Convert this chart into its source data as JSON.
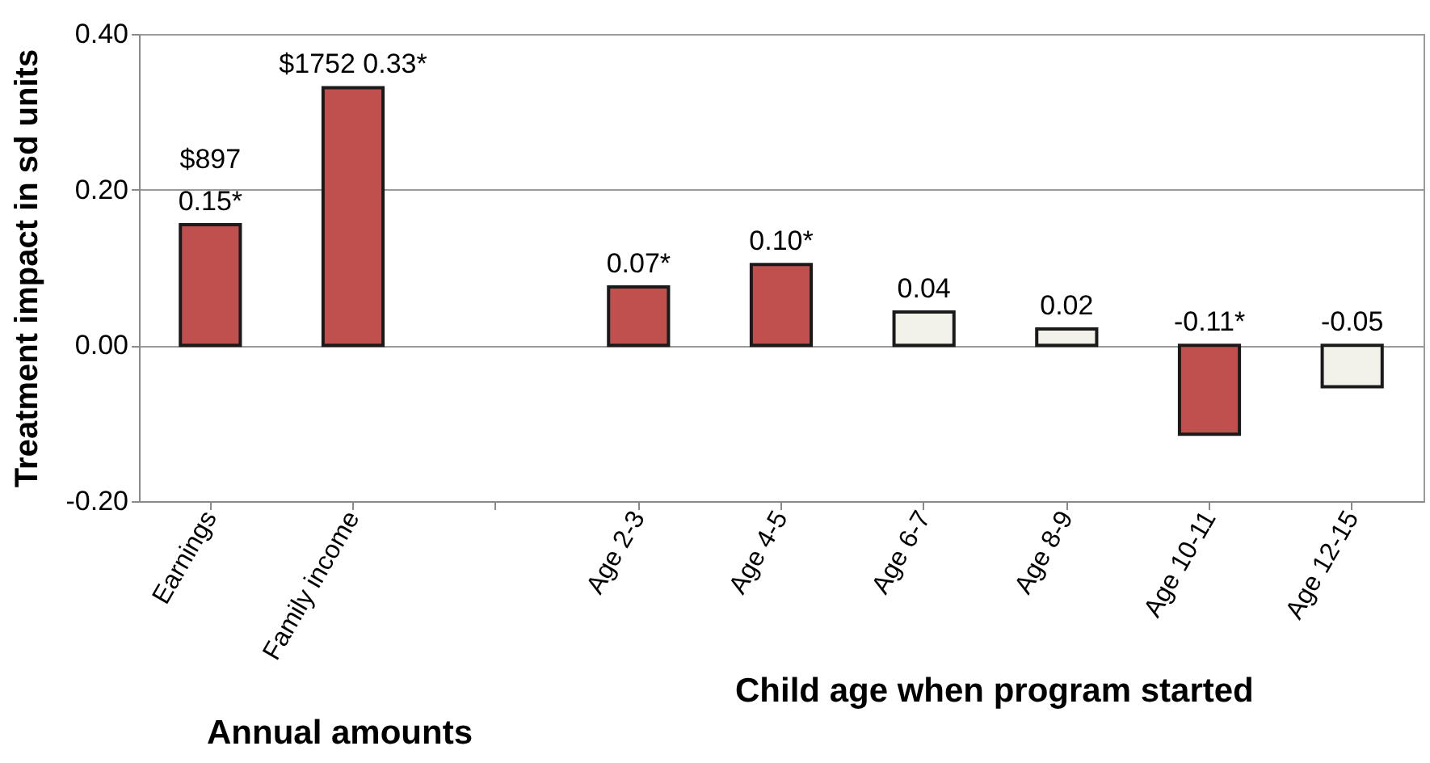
{
  "chart_data": {
    "type": "bar",
    "ylabel": "Treatment impact in sd units",
    "categories": [
      "Earnings",
      "Family income",
      null,
      "Age 2-3",
      "Age 4-5",
      "Age 6-7",
      "Age 8-9",
      "Age 10-11",
      "Age 12-15"
    ],
    "values": [
      0.155,
      0.331,
      null,
      0.075,
      0.104,
      0.043,
      0.021,
      -0.114,
      -0.053
    ],
    "colors": [
      "#c0504d",
      "#c0504d",
      "#c0504d",
      "#c0504d",
      "#c0504d",
      "#f2f2ea",
      "#f2f2ea",
      "#c0504d",
      "#f2f2ea"
    ],
    "value_labels": [
      "$897\n0.15*",
      "$1752  0.33*",
      null,
      "0.07*",
      "0.10*",
      "0.04",
      "0.02",
      "-0.11*",
      "-0.05"
    ],
    "ylim": [
      -0.2,
      0.4
    ],
    "yticks": [
      {
        "value": -0.2,
        "label": "-0.20"
      },
      {
        "value": 0,
        "label": "0.00"
      },
      {
        "value": 0.2,
        "label": "0.20"
      },
      {
        "value": 0.4,
        "label": "0.40"
      }
    ],
    "grid": "y",
    "annotations": [
      "Annual amounts",
      "Child age when program started"
    ]
  }
}
